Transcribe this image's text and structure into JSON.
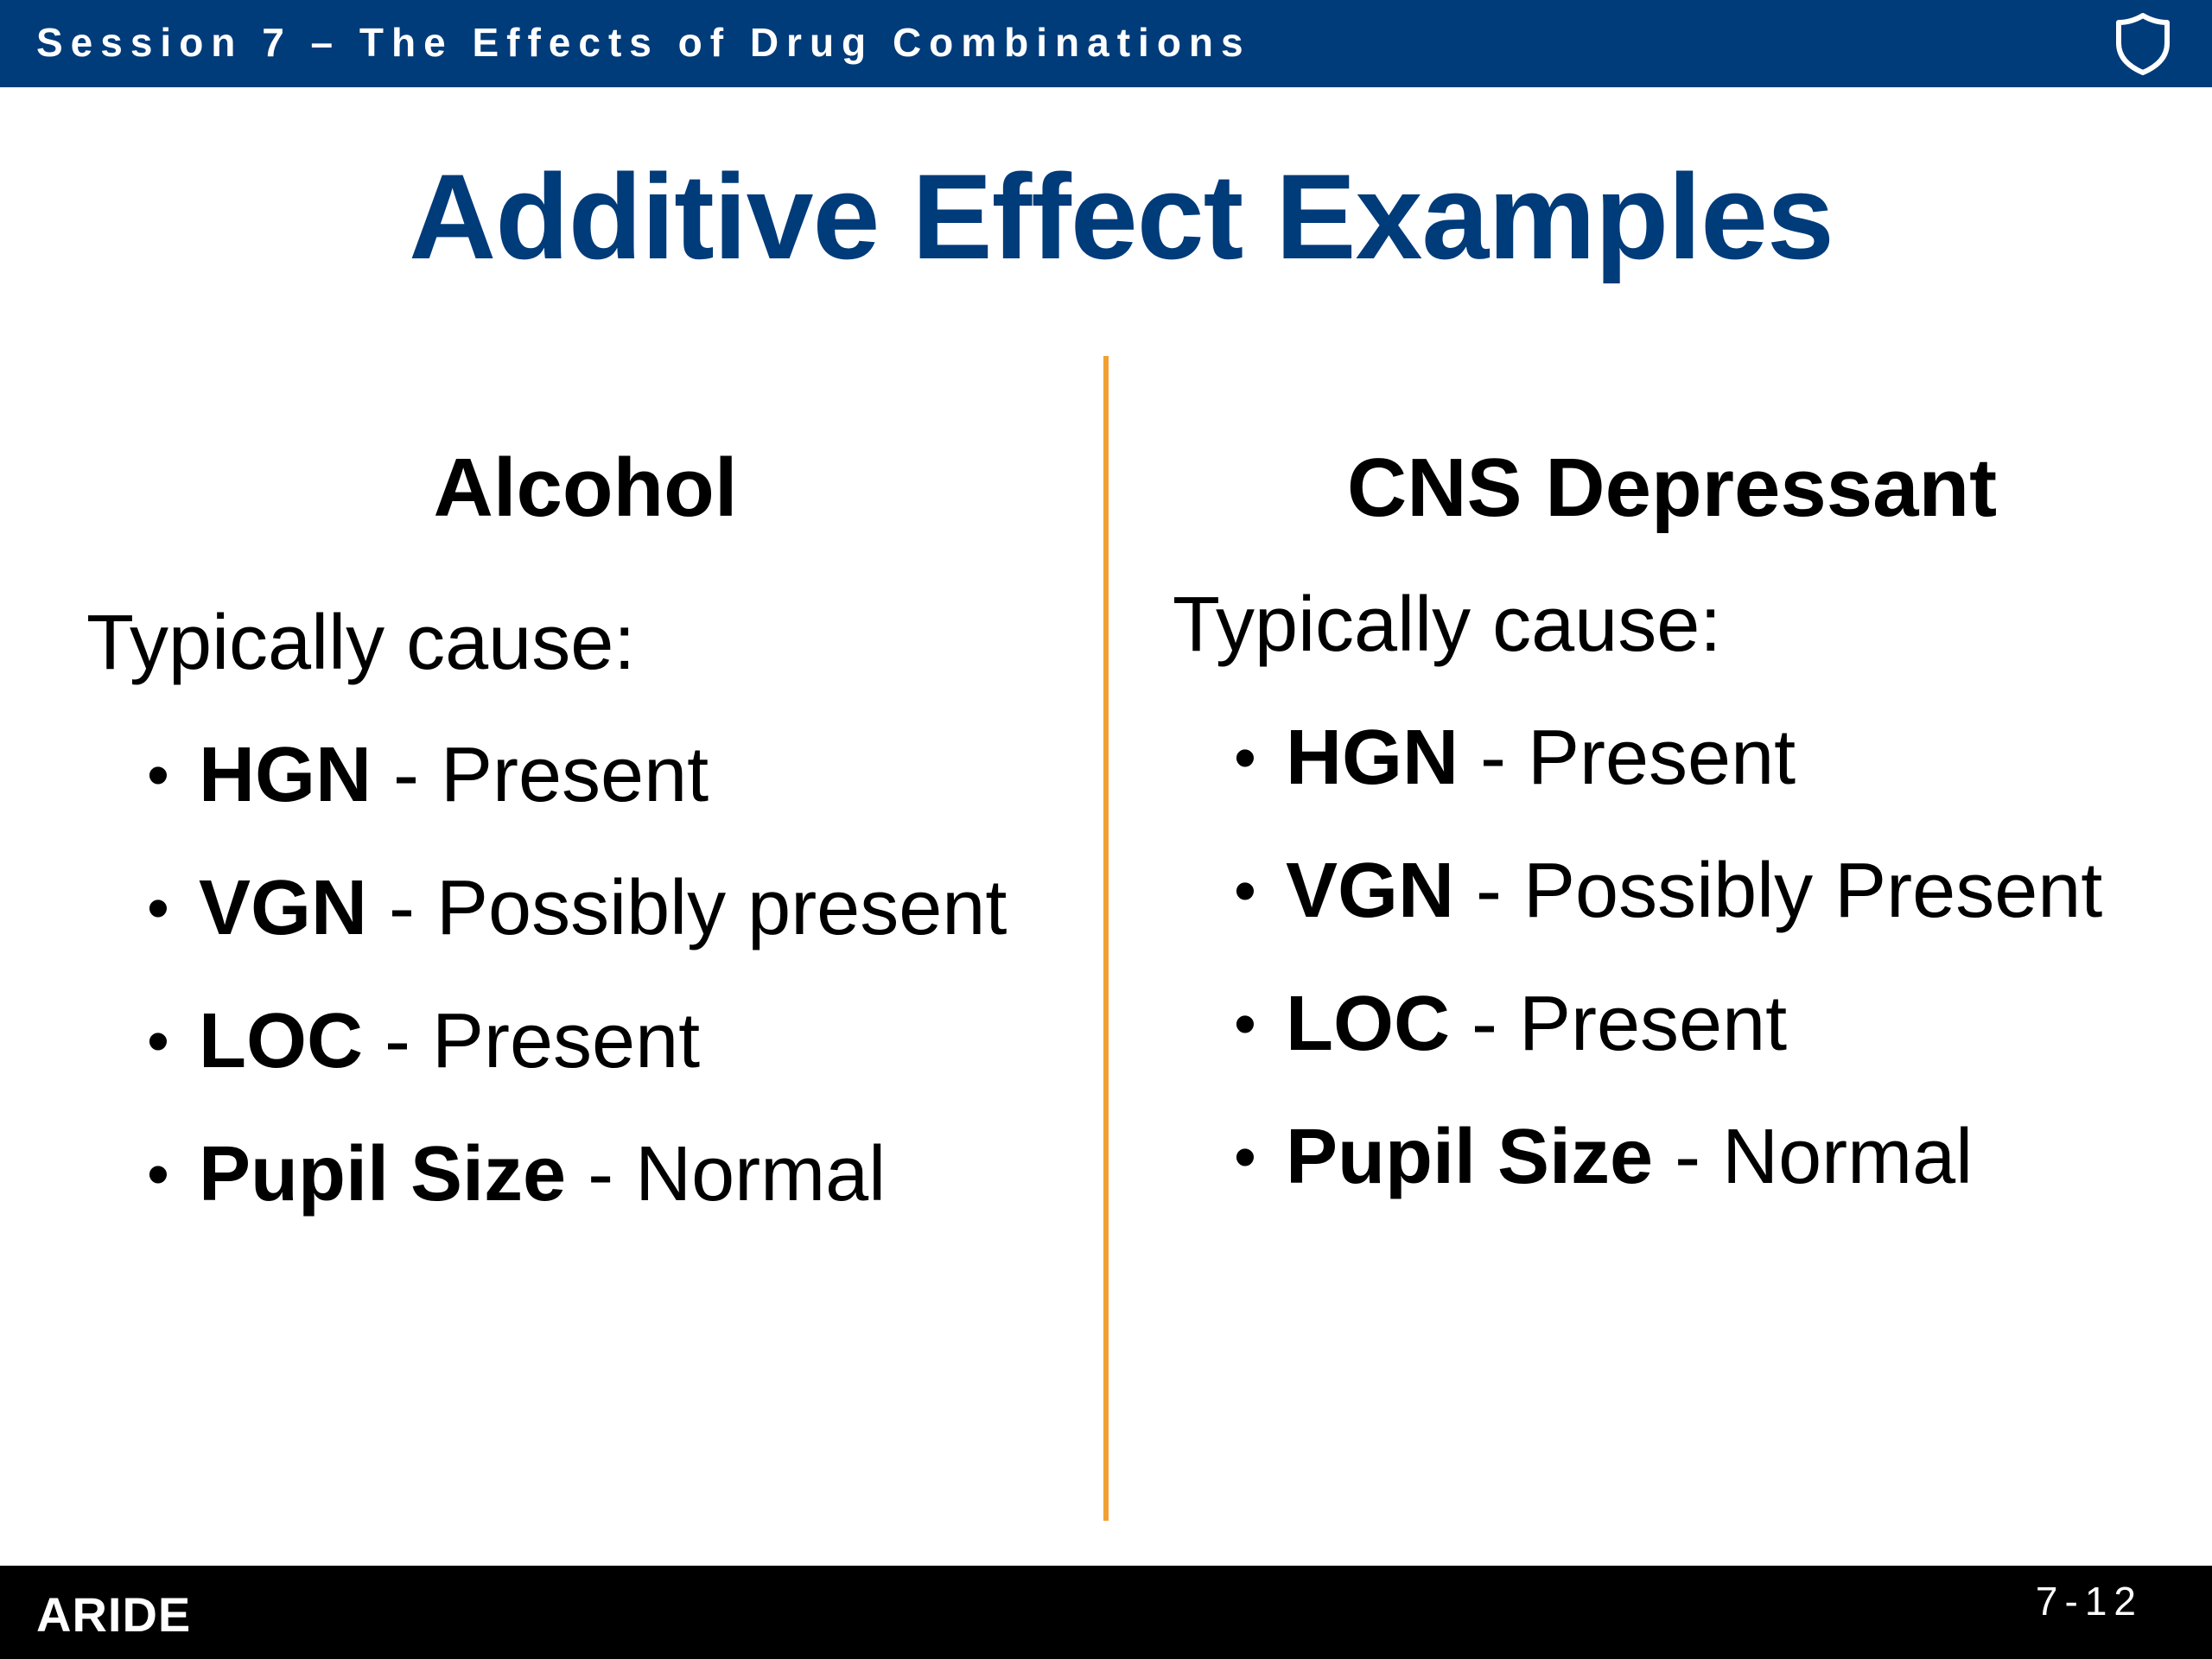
{
  "header": {
    "session_title": "Session 7 – The Effects of Drug Combinations"
  },
  "slide": {
    "title": "Additive Effect Examples"
  },
  "columns": [
    {
      "heading": "Alcohol",
      "intro": "Typically cause:",
      "items": [
        {
          "term": "HGN",
          "value": "Present"
        },
        {
          "term": "VGN",
          "value": "Possibly present"
        },
        {
          "term": "LOC",
          "value": "Present"
        },
        {
          "term": "Pupil Size",
          "value": "Normal"
        }
      ]
    },
    {
      "heading": "CNS Depressant",
      "intro": "Typically cause:",
      "items": [
        {
          "term": "HGN",
          "value": "Present"
        },
        {
          "term": "VGN",
          "value": "Possibly Present"
        },
        {
          "term": "LOC",
          "value": "Present"
        },
        {
          "term": "Pupil Size",
          "value": "Normal"
        }
      ]
    }
  ],
  "bullet": {
    "glyph": "•",
    "separator": " - "
  },
  "footer": {
    "logo_text": "ARIDE",
    "page_number": "7-12"
  },
  "colors": {
    "header_bar": "#003b7a",
    "title": "#003b7a",
    "divider": "#f2a033",
    "footer_bar": "#000000"
  },
  "icons": {
    "header_emblem": "shield-icon"
  }
}
